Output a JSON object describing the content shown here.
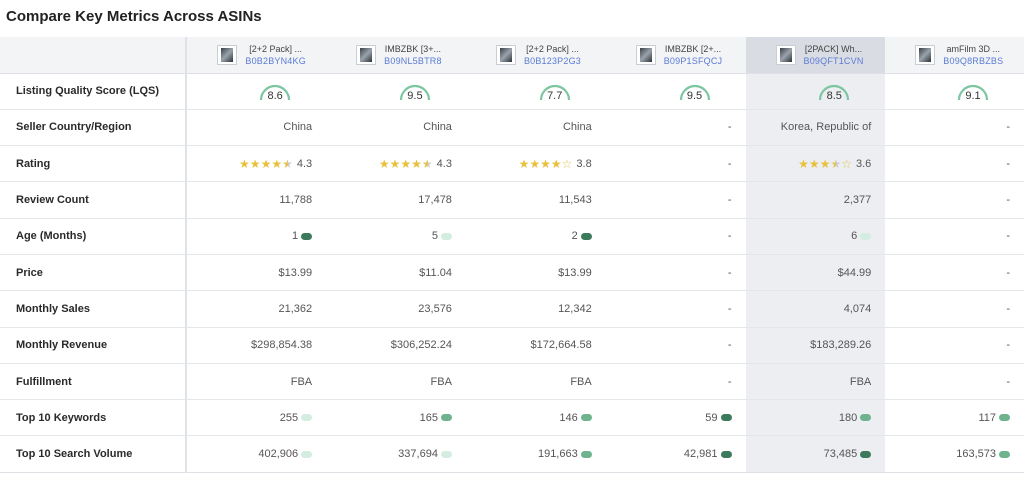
{
  "title": "Compare Key Metrics Across ASINs",
  "columns": [
    {
      "name": "[2+2 Pack] ...",
      "asin": "B0B2BYN4KG"
    },
    {
      "name": "IMBZBK [3+...",
      "asin": "B09NL5BTR8"
    },
    {
      "name": "[2+2 Pack] ...",
      "asin": "B0B123P2G3"
    },
    {
      "name": "IMBZBK [2+...",
      "asin": "B09P1SFQCJ"
    },
    {
      "name": "[2PACK] Wh...",
      "asin": "B09QFT1CVN"
    },
    {
      "name": "amFilm 3D ...",
      "asin": "B09Q8RBZBS"
    }
  ],
  "highlighted_column": 4,
  "rows": {
    "lqs": {
      "label": "Listing Quality Score (LQS)",
      "values": [
        "8.6",
        "9.5",
        "7.7",
        "9.5",
        "8.5",
        "9.1"
      ]
    },
    "country": {
      "label": "Seller Country/Region",
      "values": [
        "China",
        "China",
        "China",
        "-",
        "Korea, Republic of",
        "-"
      ]
    },
    "rating": {
      "label": "Rating",
      "values": [
        "4.3",
        "4.3",
        "3.8",
        "-",
        "3.6",
        "-"
      ],
      "stars": [
        4.5,
        4.5,
        4,
        0,
        3.5,
        0
      ]
    },
    "reviews": {
      "label": "Review Count",
      "values": [
        "11,788",
        "17,478",
        "11,543",
        "-",
        "2,377",
        "-"
      ]
    },
    "age": {
      "label": "Age (Months)",
      "values": [
        "1",
        "5",
        "2",
        "-",
        "6",
        "-"
      ],
      "pills": [
        "dark",
        "light",
        "dark",
        "",
        "light",
        ""
      ]
    },
    "price": {
      "label": "Price",
      "values": [
        "$13.99",
        "$11.04",
        "$13.99",
        "-",
        "$44.99",
        "-"
      ]
    },
    "sales": {
      "label": "Monthly Sales",
      "values": [
        "21,362",
        "23,576",
        "12,342",
        "-",
        "4,074",
        "-"
      ]
    },
    "revenue": {
      "label": "Monthly Revenue",
      "values": [
        "$298,854.38",
        "$306,252.24",
        "$172,664.58",
        "-",
        "$183,289.26",
        "-"
      ]
    },
    "fulfillment": {
      "label": "Fulfillment",
      "values": [
        "FBA",
        "FBA",
        "FBA",
        "-",
        "FBA",
        "-"
      ]
    },
    "keywords": {
      "label": "Top 10 Keywords",
      "values": [
        "255",
        "165",
        "146",
        "59",
        "180",
        "117"
      ],
      "pills": [
        "light",
        "mid",
        "mid",
        "dark",
        "mid",
        "mid"
      ]
    },
    "search": {
      "label": "Top 10 Search Volume",
      "values": [
        "402,906",
        "337,694",
        "191,663",
        "42,981",
        "73,485",
        "163,573"
      ],
      "pills": [
        "light",
        "light",
        "mid",
        "dark",
        "dark",
        "mid"
      ]
    }
  },
  "colors": {
    "gauge": "#7cc6a0",
    "star": "#e8c13b",
    "asin_link": "#5b7bd5",
    "pill_dark": "#3c7a5c",
    "pill_mid": "#6fb38e",
    "pill_light": "#d3eee0"
  }
}
